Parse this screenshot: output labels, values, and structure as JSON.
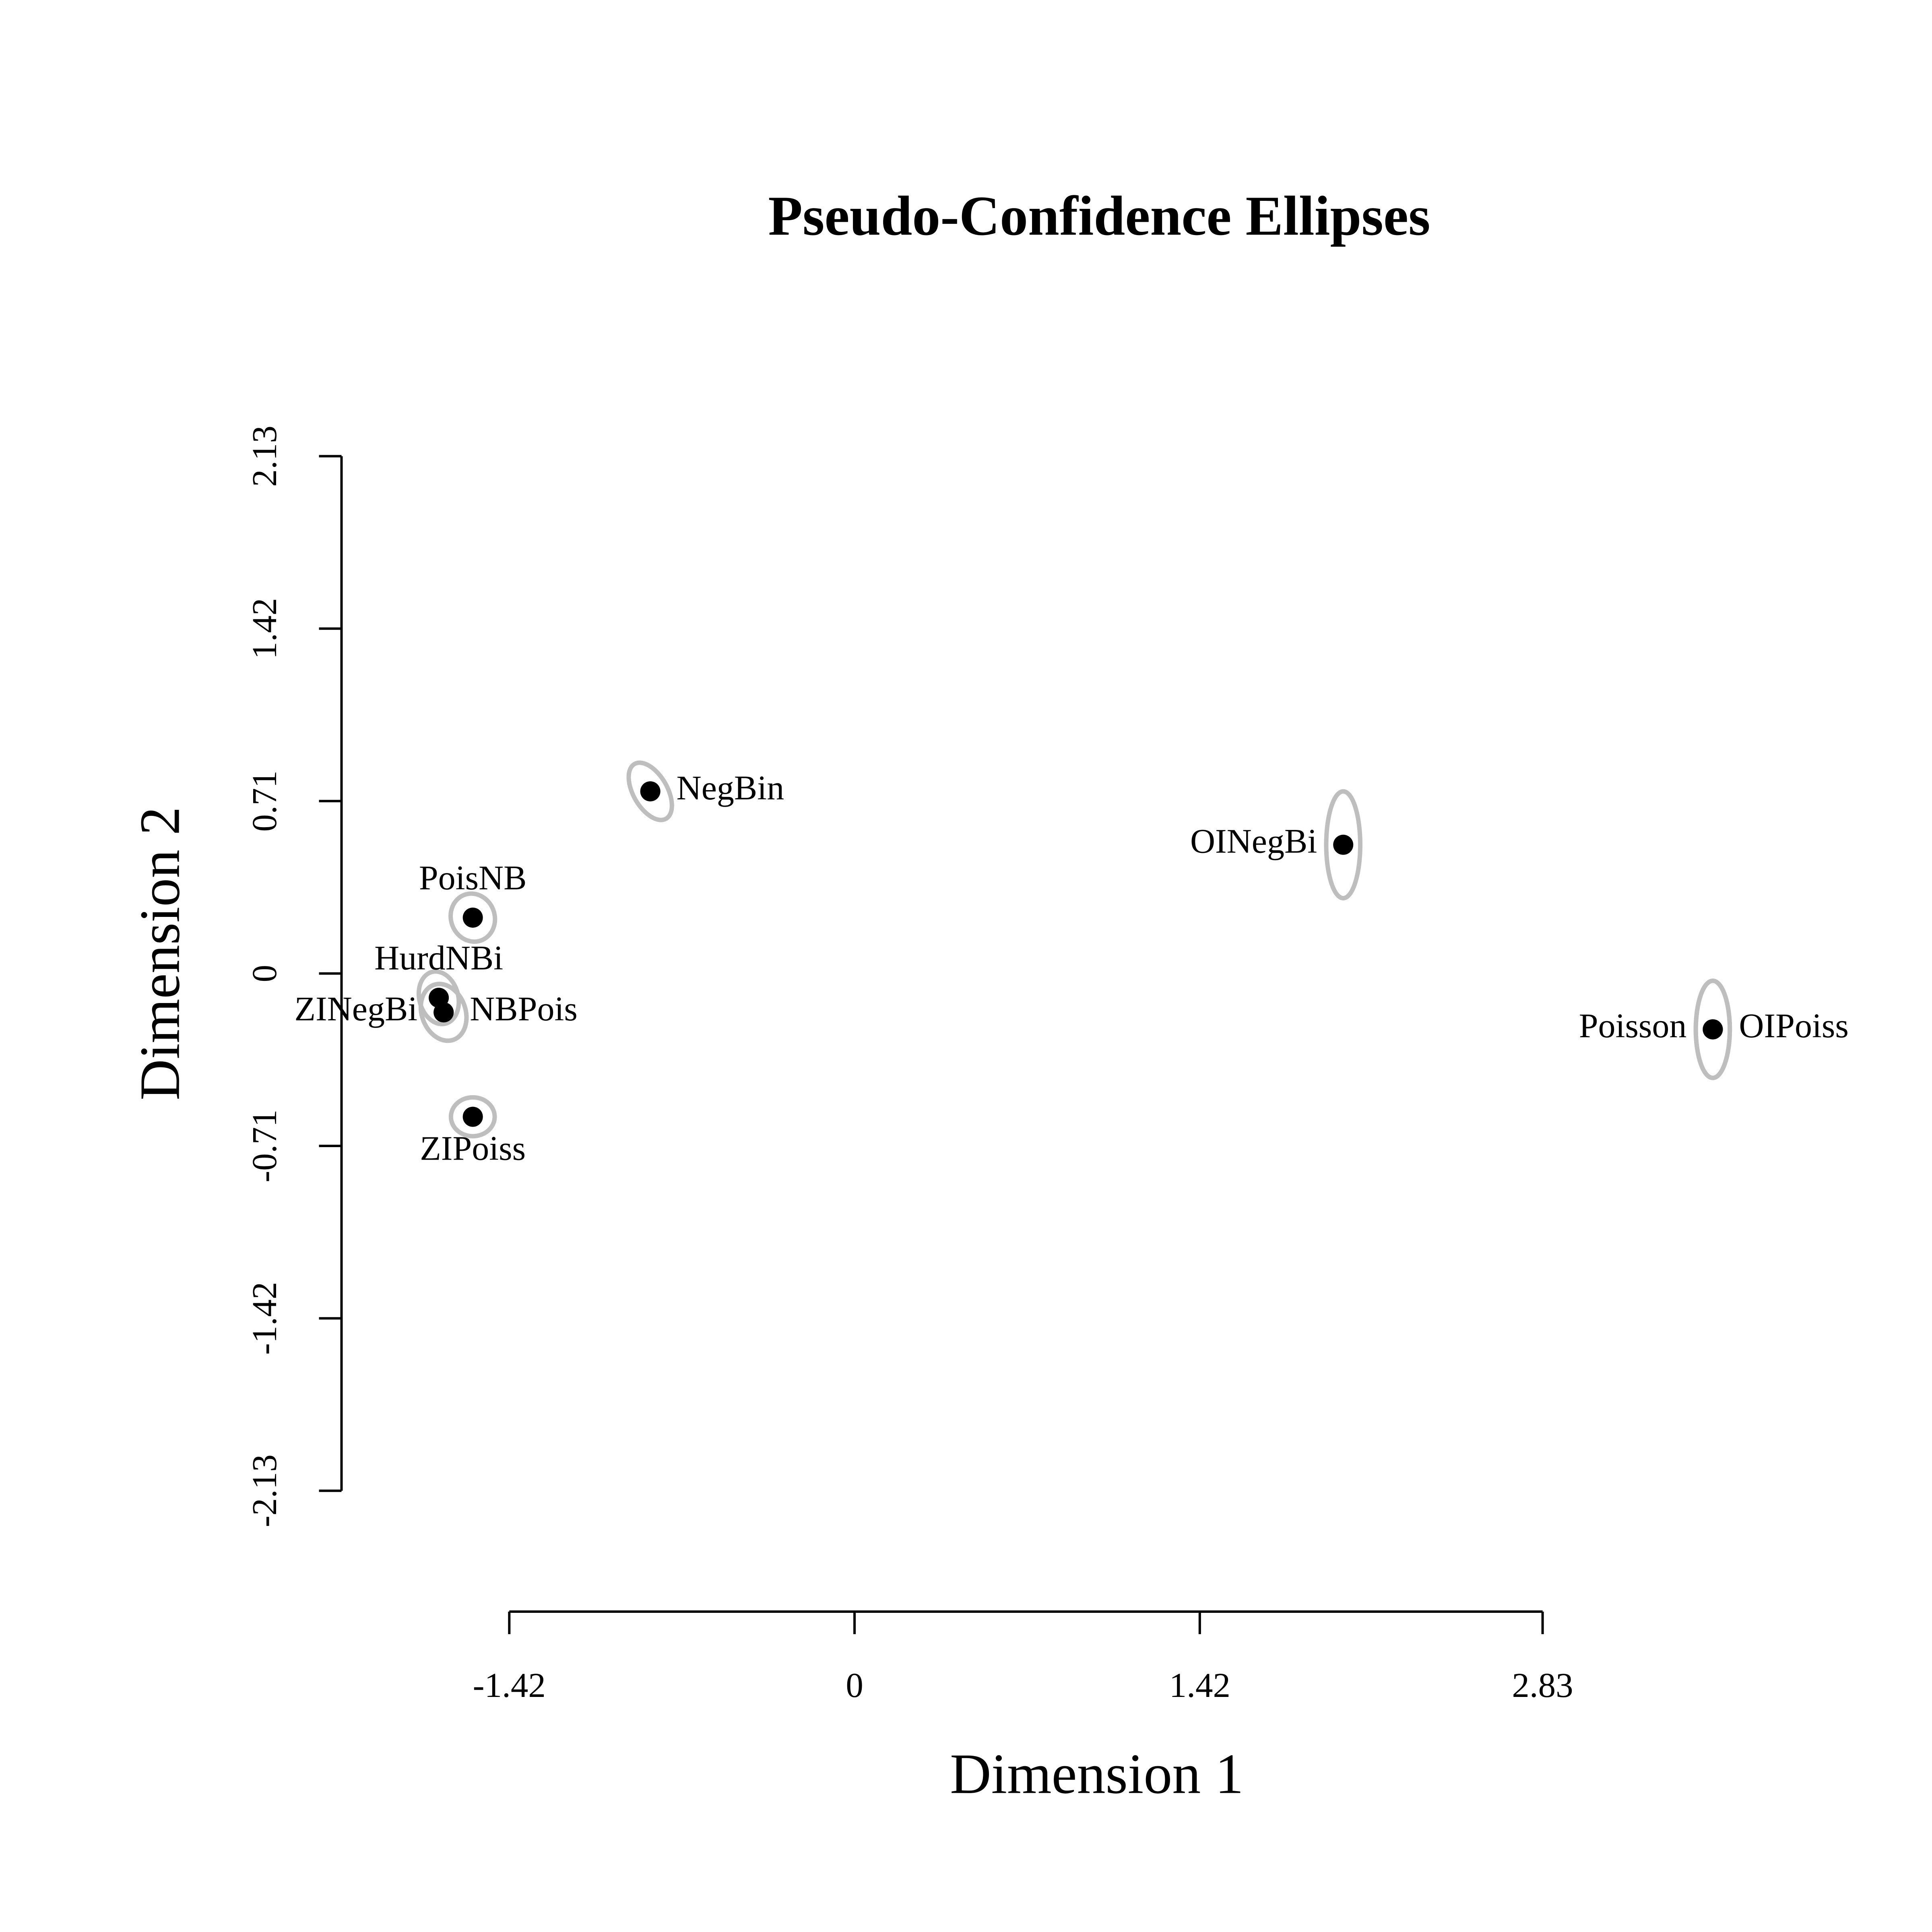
{
  "chart_data": {
    "type": "scatter",
    "title": "Pseudo-Confidence Ellipses",
    "x_label": "Dimension 1",
    "y_label": "Dimension 2",
    "labels": [
      "Poisson",
      "NegBin",
      "PoisNB",
      "NBPois",
      "HurdNBi",
      "ZIPoiss",
      "ZINegBi",
      "OIPoiss",
      "OINegBi"
    ],
    "label_positions": [
      "left",
      "right",
      "top",
      "right",
      "top",
      "bottom",
      "left",
      "right",
      "left"
    ],
    "x": [
      3.53,
      -0.84,
      -1.57,
      -1.69,
      -1.71,
      -1.57,
      -1.69,
      3.53,
      2.01
    ],
    "y": [
      -0.23,
      0.75,
      0.23,
      -0.16,
      -0.1,
      -0.59,
      -0.16,
      -0.23,
      0.53
    ],
    "ellipse_rx": [
      0.07,
      0.07,
      0.09,
      0.09,
      0.08,
      0.09,
      0.09,
      0.07,
      0.07
    ],
    "ellipse_ry": [
      0.2,
      0.13,
      0.1,
      0.12,
      0.11,
      0.08,
      0.12,
      0.2,
      0.22
    ],
    "ellipse_angle": [
      0,
      -30,
      -20,
      -20,
      -15,
      0,
      -20,
      0,
      0
    ],
    "point_color": "#000000",
    "ellipse_color": "#bebebe",
    "xlim": [
      -2.11,
      4.17
    ],
    "ylim": [
      -2.13,
      2.13
    ],
    "xticks": [
      -1.42,
      0,
      1.42,
      2.83
    ],
    "yticks": [
      -2.13,
      -1.42,
      -0.71,
      0,
      0.71,
      1.42,
      2.13
    ]
  }
}
